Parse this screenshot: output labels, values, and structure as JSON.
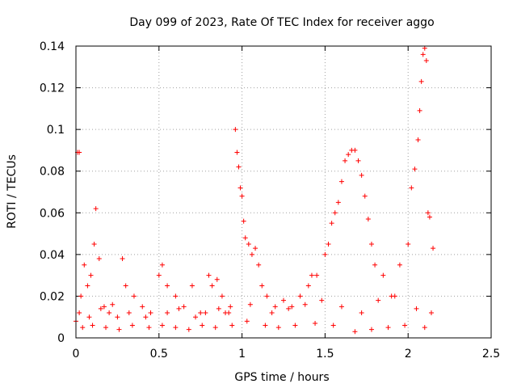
{
  "chart_data": {
    "type": "scatter",
    "title": "Day 099 of 2023, Rate Of TEC Index for receiver aggo",
    "xlabel": "GPS time / hours",
    "ylabel": "ROTI / TECUs",
    "xlim": [
      0,
      2.5
    ],
    "ylim": [
      0,
      0.14
    ],
    "x_ticks": [
      0,
      0.5,
      1,
      1.5,
      2,
      2.5
    ],
    "x_tick_labels": [
      "0",
      "0.5",
      "1",
      "1.5",
      "2",
      "2.5"
    ],
    "y_ticks": [
      0,
      0.02,
      0.04,
      0.06,
      0.08,
      0.1,
      0.12,
      0.14
    ],
    "y_tick_labels": [
      "0",
      "0.02",
      "0.04",
      "0.06",
      "0.08",
      "0.1",
      "0.12",
      "0.14"
    ],
    "grid": true,
    "marker": "plus",
    "marker_color": "#ff0000",
    "series": [
      {
        "name": "ROTI",
        "x": [
          0.0,
          0.01,
          0.02,
          0.03,
          0.05,
          0.07,
          0.09,
          0.11,
          0.12,
          0.14,
          0.17,
          0.2,
          0.25,
          0.28,
          0.3,
          0.35,
          0.4,
          0.45,
          0.5,
          0.52,
          0.55,
          0.6,
          0.65,
          0.7,
          0.75,
          0.8,
          0.82,
          0.85,
          0.88,
          0.9,
          0.93,
          0.96,
          0.97,
          0.98,
          0.99,
          1.0,
          1.01,
          1.02,
          1.04,
          1.06,
          1.08,
          1.1,
          1.12,
          1.15,
          1.2,
          1.25,
          1.3,
          1.35,
          1.4,
          1.42,
          1.45,
          1.5,
          1.52,
          1.54,
          1.56,
          1.58,
          1.6,
          1.62,
          1.64,
          1.66,
          1.68,
          1.7,
          1.72,
          1.74,
          1.76,
          1.78,
          1.8,
          1.85,
          1.9,
          1.95,
          2.0,
          2.02,
          2.04,
          2.06,
          2.07,
          2.08,
          2.09,
          2.1,
          2.11,
          2.12,
          2.13,
          2.15,
          0.02,
          0.08,
          0.15,
          0.22,
          0.32,
          0.42,
          0.55,
          0.62,
          0.72,
          0.78,
          0.86,
          0.92,
          1.05,
          1.18,
          1.28,
          1.38,
          1.48,
          1.6,
          1.72,
          1.82,
          1.92,
          2.05,
          2.14,
          0.04,
          0.1,
          0.18,
          0.26,
          0.34,
          0.44,
          0.52,
          0.6,
          0.68,
          0.76,
          0.84,
          0.94,
          1.03,
          1.14,
          1.22,
          1.32,
          1.44,
          1.55,
          1.68,
          1.78,
          1.88,
          1.98,
          2.1
        ],
        "y": [
          0.008,
          0.089,
          0.089,
          0.02,
          0.035,
          0.025,
          0.03,
          0.045,
          0.062,
          0.038,
          0.015,
          0.012,
          0.01,
          0.038,
          0.025,
          0.02,
          0.015,
          0.012,
          0.03,
          0.035,
          0.025,
          0.02,
          0.015,
          0.025,
          0.012,
          0.03,
          0.025,
          0.028,
          0.02,
          0.012,
          0.015,
          0.1,
          0.089,
          0.082,
          0.072,
          0.068,
          0.056,
          0.048,
          0.045,
          0.04,
          0.043,
          0.035,
          0.025,
          0.02,
          0.015,
          0.018,
          0.015,
          0.02,
          0.025,
          0.03,
          0.03,
          0.04,
          0.045,
          0.055,
          0.06,
          0.065,
          0.075,
          0.085,
          0.088,
          0.09,
          0.09,
          0.085,
          0.078,
          0.068,
          0.057,
          0.045,
          0.035,
          0.03,
          0.02,
          0.035,
          0.045,
          0.072,
          0.081,
          0.095,
          0.109,
          0.123,
          0.136,
          0.139,
          0.133,
          0.06,
          0.058,
          0.043,
          0.012,
          0.01,
          0.014,
          0.016,
          0.012,
          0.01,
          0.012,
          0.014,
          0.01,
          0.012,
          0.014,
          0.012,
          0.016,
          0.012,
          0.014,
          0.016,
          0.018,
          0.015,
          0.012,
          0.018,
          0.02,
          0.014,
          0.012,
          0.005,
          0.006,
          0.005,
          0.004,
          0.006,
          0.005,
          0.006,
          0.005,
          0.004,
          0.006,
          0.005,
          0.006,
          0.008,
          0.006,
          0.005,
          0.006,
          0.007,
          0.006,
          0.003,
          0.004,
          0.005,
          0.006,
          0.005
        ]
      }
    ]
  }
}
